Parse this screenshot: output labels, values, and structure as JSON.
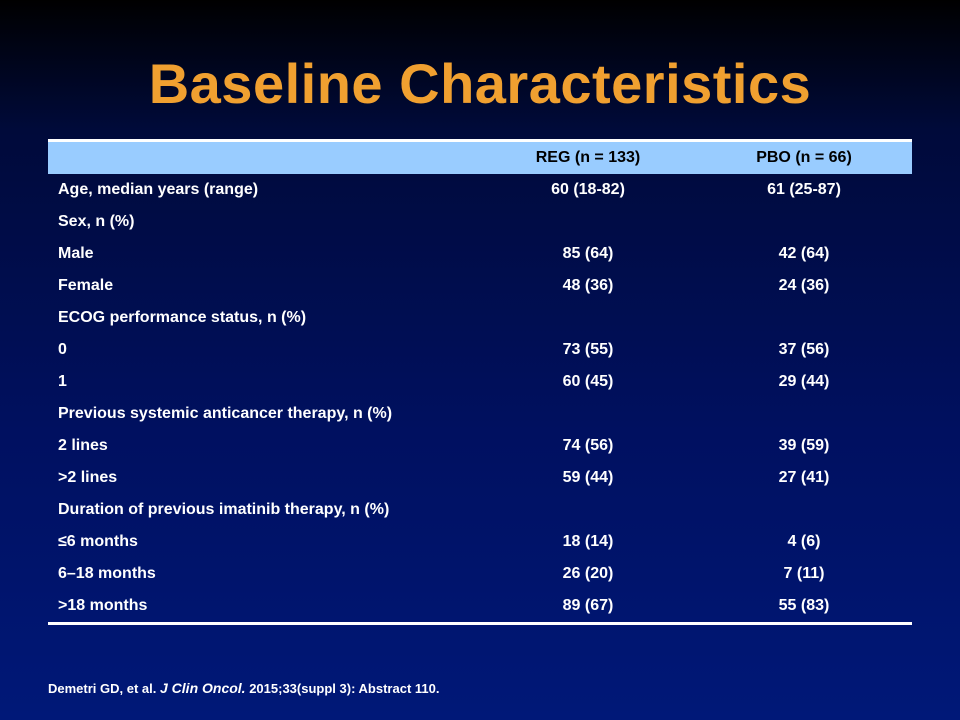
{
  "slide": {
    "title": "Baseline Characteristics"
  },
  "table": {
    "headers": [
      "",
      "REG (n = 133)",
      "PBO (n = 66)"
    ],
    "rows": [
      {
        "label": "Age, median years (range)",
        "reg": "60 (18-82)",
        "pbo": "61 (25-87)"
      },
      {
        "label": "Sex, n (%)",
        "reg": "",
        "pbo": ""
      },
      {
        "label": "Male",
        "reg": "85 (64)",
        "pbo": "42 (64)"
      },
      {
        "label": "Female",
        "reg": "48 (36)",
        "pbo": "24 (36)"
      },
      {
        "label": "ECOG performance status, n (%)",
        "reg": "",
        "pbo": ""
      },
      {
        "label": "0",
        "reg": "73 (55)",
        "pbo": "37 (56)"
      },
      {
        "label": "1",
        "reg": "60 (45)",
        "pbo": "29 (44)"
      },
      {
        "label": "Previous systemic anticancer therapy, n (%)",
        "reg": "",
        "pbo": ""
      },
      {
        "label": "2 lines",
        "reg": "74 (56)",
        "pbo": "39 (59)"
      },
      {
        "label": ">2 lines",
        "reg": "59 (44)",
        "pbo": "27 (41)"
      },
      {
        "label": "Duration of previous imatinib therapy, n (%)",
        "reg": "",
        "pbo": ""
      },
      {
        "label": "≤6 months",
        "reg": "18 (14)",
        "pbo": "4 (6)"
      },
      {
        "label": "6–18 months",
        "reg": "26 (20)",
        "pbo": "7 (11)"
      },
      {
        "label": ">18 months",
        "reg": "89 (67)",
        "pbo": "55 (83)"
      }
    ]
  },
  "citation": {
    "authors": "Demetri GD, et al.",
    "journal": "J Clin Oncol.",
    "details": "2015;33(suppl 3): Abstract 110."
  },
  "colors": {
    "title": "#f0a030",
    "header_bg": "#99ccff",
    "background": "#001060",
    "text": "#ffffff"
  }
}
